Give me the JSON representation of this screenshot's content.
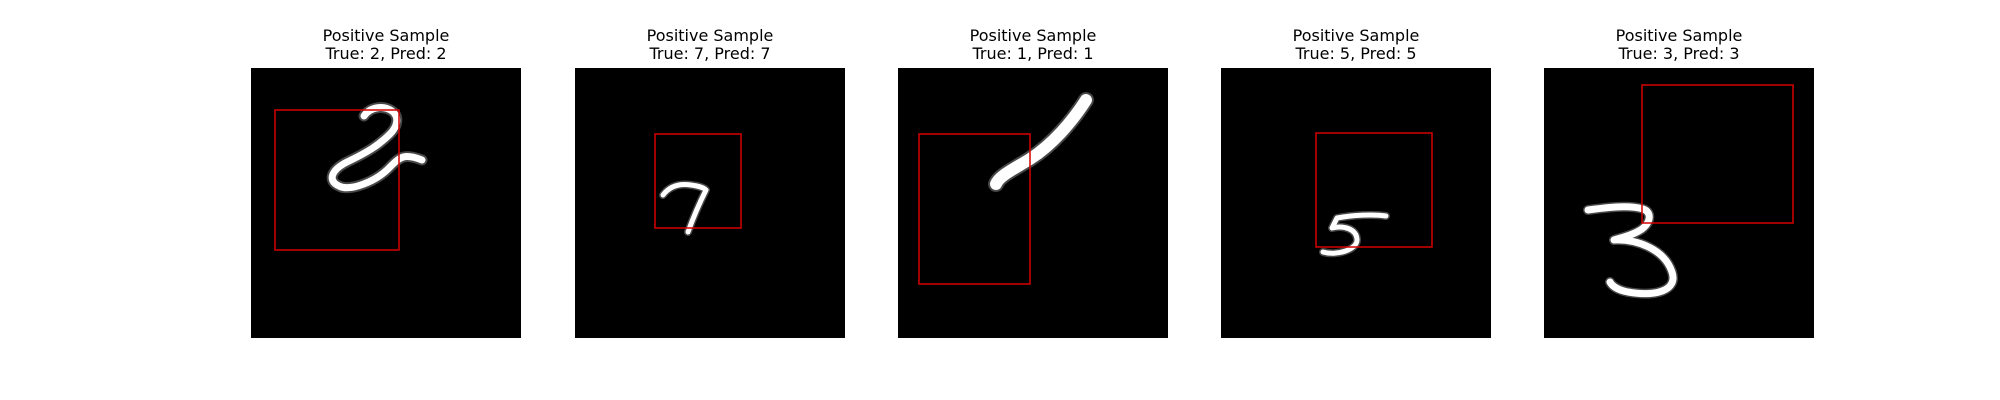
{
  "figure": {
    "panels": [
      {
        "title_line1": "Positive Sample",
        "title_line2": "True: 2, Pred: 2",
        "true_label": "2",
        "pred_label": "2",
        "digit_name": "digit-two-icon",
        "box_color": "#d60000"
      },
      {
        "title_line1": "Positive Sample",
        "title_line2": "True: 7, Pred: 7",
        "true_label": "7",
        "pred_label": "7",
        "digit_name": "digit-seven-icon",
        "box_color": "#d60000"
      },
      {
        "title_line1": "Positive Sample",
        "title_line2": "True: 1, Pred: 1",
        "true_label": "1",
        "pred_label": "1",
        "digit_name": "digit-one-icon",
        "box_color": "#d60000"
      },
      {
        "title_line1": "Positive Sample",
        "title_line2": "True: 5, Pred: 5",
        "true_label": "5",
        "pred_label": "5",
        "digit_name": "digit-five-icon",
        "box_color": "#d60000"
      },
      {
        "title_line1": "Positive Sample",
        "title_line2": "True: 3, Pred: 3",
        "true_label": "3",
        "pred_label": "3",
        "digit_name": "digit-three-icon",
        "box_color": "#d60000"
      }
    ]
  }
}
